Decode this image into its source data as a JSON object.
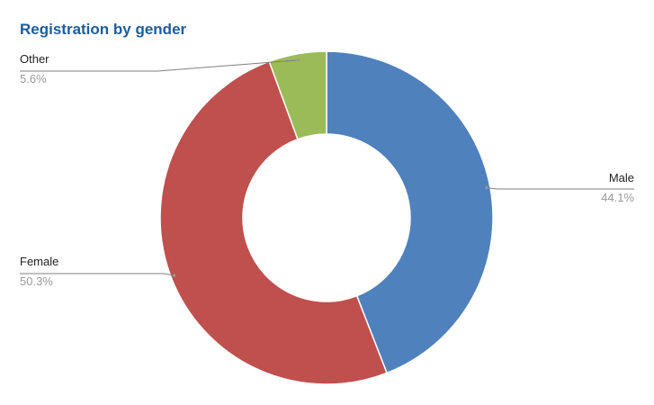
{
  "chart_data": {
    "type": "pie",
    "variant": "donut",
    "title": "Registration by gender",
    "title_color": "#1f5c99",
    "categories": [
      "Male",
      "Female",
      "Other"
    ],
    "values": [
      44.1,
      50.3,
      5.6
    ],
    "value_labels": [
      "44.1%",
      "50.3%",
      "5.6%"
    ],
    "colors": [
      "#4f81bd",
      "#c0504d",
      "#9bbb59"
    ],
    "legend": "none",
    "data_labels": "outside-with-leader-lines"
  }
}
